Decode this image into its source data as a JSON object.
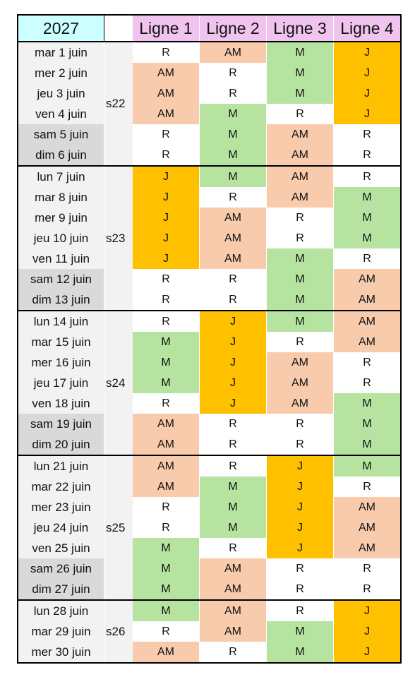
{
  "header": {
    "year": "2027",
    "lines": [
      "Ligne 1",
      "Ligne 2",
      "Ligne 3",
      "Ligne 4"
    ]
  },
  "colors": {
    "AM": "#f8cbad",
    "M": "#b6e3a0",
    "J": "#ffc000",
    "R": "#ffffff"
  },
  "weeks": [
    {
      "label": "s22",
      "days": [
        {
          "date": "mar 1 juin",
          "cells": [
            "R",
            "AM",
            "M",
            "J"
          ]
        },
        {
          "date": "mer 2 juin",
          "cells": [
            "AM",
            "R",
            "M",
            "J"
          ]
        },
        {
          "date": "jeu 3 juin",
          "cells": [
            "AM",
            "R",
            "M",
            "J"
          ]
        },
        {
          "date": "ven 4 juin",
          "cells": [
            "AM",
            "M",
            "R",
            "J"
          ]
        },
        {
          "date": "sam 5 juin",
          "weekend": true,
          "cells": [
            "R",
            "M",
            "AM",
            "R"
          ]
        },
        {
          "date": "dim 6 juin",
          "weekend": true,
          "cells": [
            "R",
            "M",
            "AM",
            "R"
          ]
        }
      ]
    },
    {
      "label": "s23",
      "days": [
        {
          "date": "lun 7 juin",
          "cells": [
            "J",
            "M",
            "AM",
            "R"
          ]
        },
        {
          "date": "mar 8 juin",
          "cells": [
            "J",
            "R",
            "AM",
            "M"
          ]
        },
        {
          "date": "mer 9 juin",
          "cells": [
            "J",
            "AM",
            "R",
            "M"
          ]
        },
        {
          "date": "jeu 10 juin",
          "cells": [
            "J",
            "AM",
            "R",
            "M"
          ]
        },
        {
          "date": "ven 11 juin",
          "cells": [
            "J",
            "AM",
            "M",
            "R"
          ]
        },
        {
          "date": "sam 12 juin",
          "weekend": true,
          "cells": [
            "R",
            "R",
            "M",
            "AM"
          ]
        },
        {
          "date": "dim 13 juin",
          "weekend": true,
          "cells": [
            "R",
            "R",
            "M",
            "AM"
          ]
        }
      ]
    },
    {
      "label": "s24",
      "days": [
        {
          "date": "lun 14 juin",
          "cells": [
            "R",
            "J",
            "M",
            "AM"
          ]
        },
        {
          "date": "mar 15 juin",
          "cells": [
            "M",
            "J",
            "R",
            "AM"
          ]
        },
        {
          "date": "mer 16 juin",
          "cells": [
            "M",
            "J",
            "AM",
            "R"
          ]
        },
        {
          "date": "jeu 17 juin",
          "cells": [
            "M",
            "J",
            "AM",
            "R"
          ]
        },
        {
          "date": "ven 18 juin",
          "cells": [
            "R",
            "J",
            "AM",
            "M"
          ]
        },
        {
          "date": "sam 19 juin",
          "weekend": true,
          "cells": [
            "AM",
            "R",
            "R",
            "M"
          ]
        },
        {
          "date": "dim 20 juin",
          "weekend": true,
          "cells": [
            "AM",
            "R",
            "R",
            "M"
          ]
        }
      ]
    },
    {
      "label": "s25",
      "days": [
        {
          "date": "lun 21 juin",
          "cells": [
            "AM",
            "R",
            "J",
            "M"
          ]
        },
        {
          "date": "mar 22 juin",
          "cells": [
            "AM",
            "M",
            "J",
            "R"
          ]
        },
        {
          "date": "mer 23 juin",
          "cells": [
            "R",
            "M",
            "J",
            "AM"
          ]
        },
        {
          "date": "jeu 24 juin",
          "cells": [
            "R",
            "M",
            "J",
            "AM"
          ]
        },
        {
          "date": "ven 25 juin",
          "cells": [
            "M",
            "R",
            "J",
            "AM"
          ]
        },
        {
          "date": "sam 26 juin",
          "weekend": true,
          "cells": [
            "M",
            "AM",
            "R",
            "R"
          ]
        },
        {
          "date": "dim 27 juin",
          "weekend": true,
          "cells": [
            "M",
            "AM",
            "R",
            "R"
          ]
        }
      ]
    },
    {
      "label": "s26",
      "days": [
        {
          "date": "lun 28 juin",
          "cells": [
            "M",
            "AM",
            "R",
            "J"
          ]
        },
        {
          "date": "mar 29 juin",
          "cells": [
            "R",
            "AM",
            "M",
            "J"
          ]
        },
        {
          "date": "mer 30 juin",
          "cells": [
            "AM",
            "R",
            "M",
            "J"
          ]
        }
      ]
    }
  ]
}
